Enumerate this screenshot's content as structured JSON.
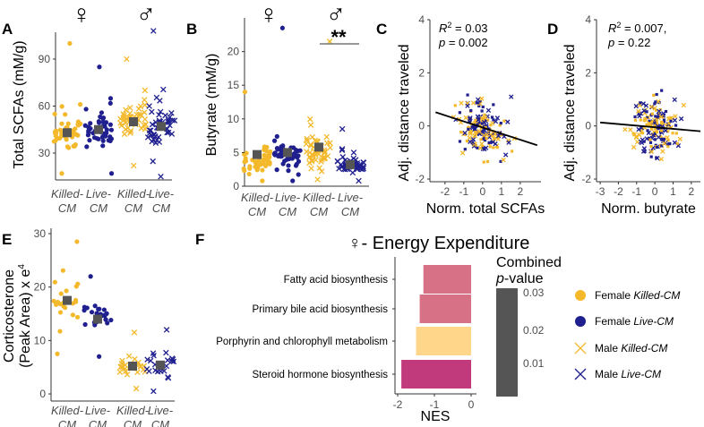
{
  "colors": {
    "yellow": "#F4B92B",
    "yellow_light": "#FCD88A",
    "navy": "#1F1F8F",
    "grey": "#555555",
    "grey_sig": "#777777",
    "bar_steroid": "#C13B7C",
    "bar_mid": "#D77186",
    "bar_porph": "#FFD68A"
  },
  "group_labels": {
    "killed": "Killed-",
    "live": "Live-",
    "cm": "CM"
  },
  "sex_symbols": {
    "female": "♀",
    "male": "♂"
  },
  "chart_data": [
    {
      "panel": "A",
      "type": "scatter",
      "ylabel": "Total SCFAs (mM/g)",
      "ylim": [
        14,
        110
      ],
      "yticks": [
        30,
        60,
        90
      ],
      "groups": [
        {
          "name": "Female Killed-CM",
          "sex": "female",
          "diet": "killed",
          "mean": 43,
          "center": 42,
          "spread": 12,
          "n": 45,
          "max": 100,
          "min": 17
        },
        {
          "name": "Female Live-CM",
          "sex": "female",
          "diet": "live",
          "mean": 45,
          "center": 45,
          "spread": 13,
          "n": 45,
          "max": 85,
          "min": 17
        },
        {
          "name": "Male Killed-CM",
          "sex": "male",
          "diet": "killed",
          "mean": 50,
          "center": 50,
          "spread": 11,
          "n": 45,
          "max": 90,
          "min": 22
        },
        {
          "name": "Male Live-CM",
          "sex": "male",
          "diet": "live",
          "mean": 47,
          "center": 45,
          "spread": 18,
          "n": 48,
          "max": 108,
          "min": 15
        }
      ]
    },
    {
      "panel": "B",
      "type": "scatter",
      "ylabel": "Butyrate (mM/g)",
      "ylim": [
        0,
        25
      ],
      "yticks": [
        0,
        5,
        10,
        15,
        20
      ],
      "significance": "**",
      "groups": [
        {
          "name": "Female Killed-CM",
          "sex": "female",
          "diet": "killed",
          "mean": 4.7,
          "center": 3.5,
          "spread": 2.4,
          "n": 48,
          "max": 14,
          "min": 0.8
        },
        {
          "name": "Female Live-CM",
          "sex": "female",
          "diet": "live",
          "mean": 5.0,
          "center": 4.5,
          "spread": 2.6,
          "n": 48,
          "max": 23.5,
          "min": 0.8
        },
        {
          "name": "Male Killed-CM",
          "sex": "male",
          "diet": "killed",
          "mean": 5.8,
          "center": 5.0,
          "spread": 3.2,
          "n": 50,
          "max": 21.5,
          "min": 1.0
        },
        {
          "name": "Male Live-CM",
          "sex": "male",
          "diet": "live",
          "mean": 3.2,
          "center": 3.0,
          "spread": 1.4,
          "n": 52,
          "max": 8.5,
          "min": 0.8
        }
      ]
    },
    {
      "panel": "C",
      "type": "scatter",
      "xlabel": "Norm. total SCFAs",
      "ylabel": "Adj. distance  traveled",
      "xlim": [
        -2.8,
        3.1
      ],
      "ylim": [
        -2.1,
        4
      ],
      "xticks": [
        -2,
        -1,
        0,
        1,
        2
      ],
      "yticks": [
        -2,
        0,
        2,
        4
      ],
      "r2_label": "R",
      "r2_sup": "2",
      "r2_value": " = 0.03",
      "p_label": "p",
      "p_value": " = 0.002",
      "fit": {
        "slope": -0.23,
        "intercept": -0.06,
        "x": [
          -2.5,
          2.9
        ]
      },
      "n_points": 180
    },
    {
      "panel": "D",
      "type": "scatter",
      "xlabel": "Norm. butyrate",
      "ylabel": "Adj. distance traveled",
      "xlim": [
        -3.2,
        2.5
      ],
      "ylim": [
        -2.1,
        4
      ],
      "xticks": [
        -3,
        -2,
        -1,
        0,
        1,
        2
      ],
      "yticks": [
        -2,
        0,
        2,
        4
      ],
      "r2_label": "R",
      "r2_sup": "2",
      "r2_value": " = 0.007,",
      "p_label": "p",
      "p_value": " = 0.22",
      "fit": {
        "slope": -0.06,
        "intercept": -0.05,
        "x": [
          -3.0,
          2.5
        ]
      },
      "n_points": 180
    },
    {
      "panel": "E",
      "type": "scatter",
      "ylabel": "Corticosterone\n(Peak Area) x e⁴",
      "ylabel_lines": [
        "Corticosterone",
        "(Peak Area) x e"
      ],
      "ylabel_sup": "4",
      "ylim": [
        -1,
        30
      ],
      "yticks": [
        0,
        10,
        20,
        30
      ],
      "groups": [
        {
          "name": "Female Killed-CM",
          "sex": "female",
          "diet": "killed",
          "mean": 17.5,
          "center": 17,
          "spread": 5,
          "n": 24,
          "max": 28.5,
          "min": 7.5
        },
        {
          "name": "Female Live-CM",
          "sex": "female",
          "diet": "live",
          "mean": 14,
          "center": 14,
          "spread": 4,
          "n": 24,
          "max": 22,
          "min": 7
        },
        {
          "name": "Male Killed-CM",
          "sex": "male",
          "diet": "killed",
          "mean": 5.2,
          "center": 5,
          "spread": 2.5,
          "n": 24,
          "max": 11.5,
          "min": 1
        },
        {
          "name": "Male Live-CM",
          "sex": "male",
          "diet": "live",
          "mean": 5.4,
          "center": 5,
          "spread": 3,
          "n": 24,
          "max": 12,
          "min": 0.5
        }
      ]
    },
    {
      "panel": "F",
      "type": "bar",
      "title": "♀- Energy Expenditure",
      "xlabel": "NES",
      "xlim": [
        -2,
        0
      ],
      "xticks": [
        -2,
        -1,
        0
      ],
      "categories": [
        "Fatty acid biosynthesis",
        "Primary bile acid biosynthesis",
        "Porphyrin and chlorophyll metabolism",
        "Steroid hormone biosynthesis"
      ],
      "values": [
        -1.3,
        -1.4,
        -1.5,
        -1.9
      ],
      "pvalues": [
        0.02,
        0.018,
        0.03,
        0.003
      ],
      "legend_title": "Combined",
      "legend_title_p": "p",
      "legend_title_rest": "-value",
      "legend_ticks": [
        "0.03",
        "0.02",
        "0.01"
      ]
    }
  ],
  "legend": [
    {
      "label": "Female ",
      "italic": "Killed-CM",
      "marker": "dot",
      "color": "#F4B92B"
    },
    {
      "label": "Female ",
      "italic": "Live-CM",
      "marker": "dot",
      "color": "#1F1F8F"
    },
    {
      "label": "Male ",
      "italic": "Killed-CM",
      "marker": "x",
      "color": "#F4B92B"
    },
    {
      "label": "Male ",
      "italic": "Live-CM",
      "marker": "x",
      "color": "#1F1F8F"
    }
  ]
}
